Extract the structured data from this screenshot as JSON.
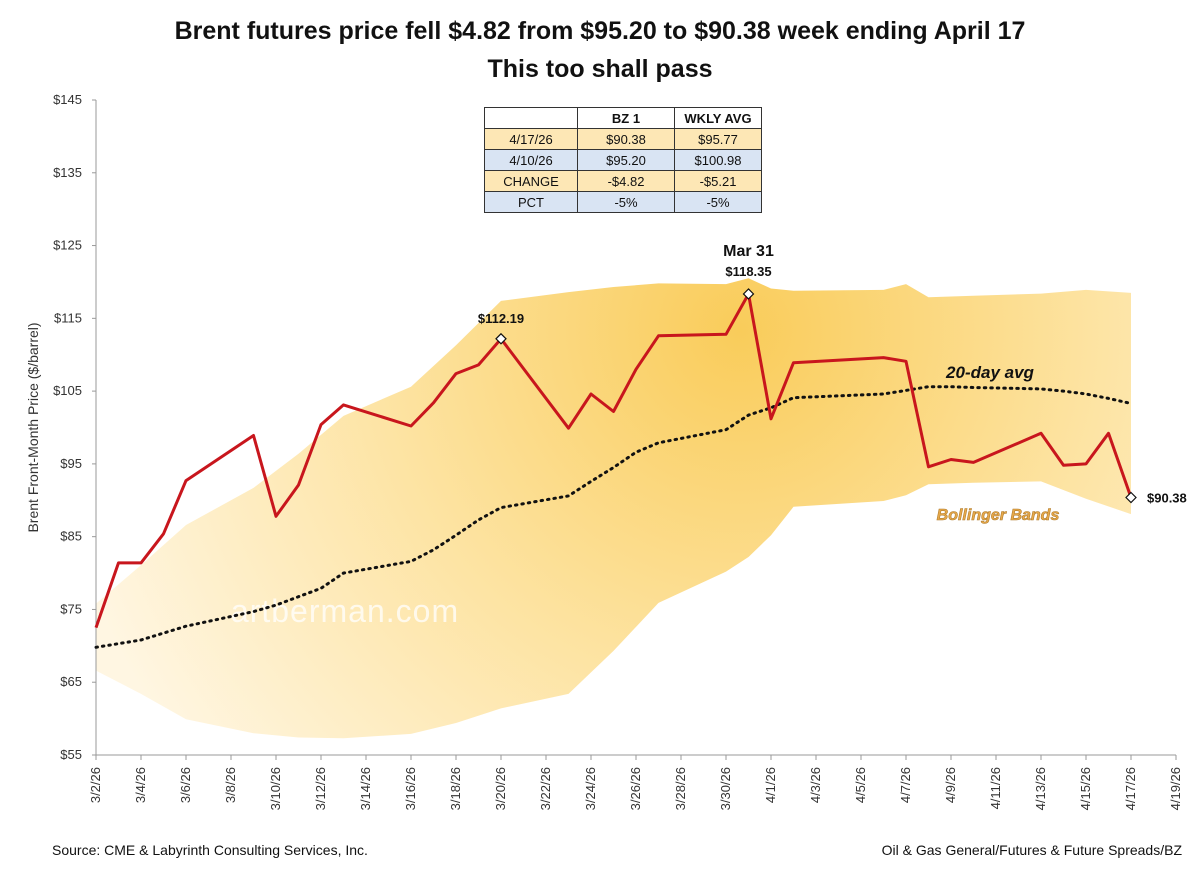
{
  "chart_data": {
    "type": "line",
    "title": "Brent futures price fell $4.82 from $95.20 to $90.38 week ending April 17",
    "subtitle": "This too shall pass",
    "ylabel": "Brent Front-Month Price ($/barrel)",
    "ylim": [
      55,
      145
    ],
    "yticks": [
      "$55",
      "$65",
      "$75",
      "$85",
      "$95",
      "$105",
      "$115",
      "$125",
      "$135",
      "$145"
    ],
    "xlim": [
      "2026-03-02",
      "2026-04-19"
    ],
    "xticks": [
      "3/2/26",
      "3/4/26",
      "3/6/26",
      "3/8/26",
      "3/10/26",
      "3/12/26",
      "3/14/26",
      "3/16/26",
      "3/18/26",
      "3/20/26",
      "3/22/26",
      "3/24/26",
      "3/26/26",
      "3/28/26",
      "3/30/26",
      "4/1/26",
      "4/3/26",
      "4/5/26",
      "4/7/26",
      "4/9/26",
      "4/11/26",
      "4/13/26",
      "4/15/26",
      "4/17/26",
      "4/19/26"
    ],
    "grid": false,
    "series": [
      {
        "name": "",
        "color": "#c8161d",
        "x": [
          "2026-03-02",
          "2026-03-03",
          "2026-03-04",
          "2026-03-05",
          "2026-03-06",
          "2026-03-09",
          "2026-03-10",
          "2026-03-11",
          "2026-03-12",
          "2026-03-13",
          "2026-03-16",
          "2026-03-17",
          "2026-03-18",
          "2026-03-19",
          "2026-03-20",
          "2026-03-23",
          "2026-03-24",
          "2026-03-25",
          "2026-03-26",
          "2026-03-27",
          "2026-03-30",
          "2026-03-31",
          "2026-04-01",
          "2026-04-02",
          "2026-04-06",
          "2026-04-07",
          "2026-04-08",
          "2026-04-09",
          "2026-04-10",
          "2026-04-13",
          "2026-04-14",
          "2026-04-15",
          "2026-04-16",
          "2026-04-17"
        ],
        "values": [
          72.5,
          81.4,
          81.4,
          85.4,
          92.7,
          98.9,
          87.8,
          92.1,
          100.4,
          103.1,
          100.2,
          103.4,
          107.4,
          108.6,
          112.19,
          99.9,
          104.6,
          102.2,
          108.0,
          112.6,
          112.8,
          118.35,
          101.2,
          108.9,
          109.6,
          109.1,
          94.6,
          95.6,
          95.2,
          99.2,
          94.8,
          95.0,
          99.2,
          90.38
        ]
      },
      {
        "name": "20-day avg",
        "color": "#111111",
        "style": "dotted",
        "x": [
          "2026-03-02",
          "2026-03-04",
          "2026-03-06",
          "2026-03-09",
          "2026-03-10",
          "2026-03-12",
          "2026-03-13",
          "2026-03-16",
          "2026-03-17",
          "2026-03-18",
          "2026-03-19",
          "2026-03-20",
          "2026-03-23",
          "2026-03-24",
          "2026-03-25",
          "2026-03-26",
          "2026-03-27",
          "2026-03-30",
          "2026-03-31",
          "2026-04-01",
          "2026-04-02",
          "2026-04-06",
          "2026-04-07",
          "2026-04-08",
          "2026-04-09",
          "2026-04-10",
          "2026-04-13",
          "2026-04-14",
          "2026-04-15",
          "2026-04-16",
          "2026-04-17"
        ],
        "values": [
          69.8,
          70.8,
          72.7,
          74.7,
          75.6,
          77.9,
          80.0,
          81.6,
          83.2,
          85.2,
          87.3,
          89.0,
          90.6,
          92.6,
          94.5,
          96.6,
          97.9,
          99.7,
          101.7,
          102.7,
          104.1,
          104.6,
          105.1,
          105.6,
          105.6,
          105.5,
          105.3,
          105.0,
          104.6,
          104.0,
          103.3
        ]
      }
    ],
    "bands": {
      "name": "Bollinger Bands",
      "x": [
        "2026-03-02",
        "2026-03-04",
        "2026-03-06",
        "2026-03-09",
        "2026-03-11",
        "2026-03-13",
        "2026-03-16",
        "2026-03-18",
        "2026-03-20",
        "2026-03-23",
        "2026-03-25",
        "2026-03-27",
        "2026-03-30",
        "2026-03-31",
        "2026-04-01",
        "2026-04-02",
        "2026-04-06",
        "2026-04-07",
        "2026-04-08",
        "2026-04-10",
        "2026-04-13",
        "2026-04-15",
        "2026-04-17"
      ],
      "upper": [
        75.8,
        81.1,
        86.6,
        91.7,
        96.4,
        101.6,
        105.6,
        111.3,
        117.4,
        118.6,
        119.3,
        119.8,
        119.7,
        120.5,
        119.1,
        118.8,
        118.9,
        119.7,
        117.9,
        118.1,
        118.4,
        118.9,
        118.5
      ],
      "lower": [
        66.6,
        63.4,
        59.9,
        58.0,
        57.4,
        57.3,
        57.9,
        59.4,
        61.4,
        63.4,
        69.3,
        75.9,
        80.2,
        82.2,
        85.2,
        89.1,
        89.9,
        90.7,
        92.2,
        92.4,
        92.6,
        90.2,
        88.1
      ]
    },
    "annotations": [
      {
        "text": "$112.19",
        "x": "2026-03-20",
        "y": 112.19
      },
      {
        "text": "Mar 31",
        "x": "2026-03-31",
        "y": 118.35
      },
      {
        "text": "$118.35",
        "x": "2026-03-31",
        "y": 118.35
      },
      {
        "text": "$90.38",
        "x": "2026-04-17",
        "y": 90.38
      },
      {
        "text": "20-day avg"
      },
      {
        "text": "Bollinger Bands"
      }
    ]
  },
  "table": {
    "headers": [
      "",
      "BZ 1",
      "WKLY AVG"
    ],
    "rows": [
      [
        "4/17/26",
        "$90.38",
        "$95.77"
      ],
      [
        "4/10/26",
        "$95.20",
        "$100.98"
      ],
      [
        "CHANGE",
        "-$4.82",
        "-$5.21"
      ],
      [
        "PCT",
        "-5%",
        "-5%"
      ]
    ]
  },
  "watermark": "artberman.com",
  "footer": {
    "source": "Source: CME & Labyrinth Consulting Services, Inc.",
    "category": "Oil & Gas General/Futures & Future Spreads/BZ"
  }
}
